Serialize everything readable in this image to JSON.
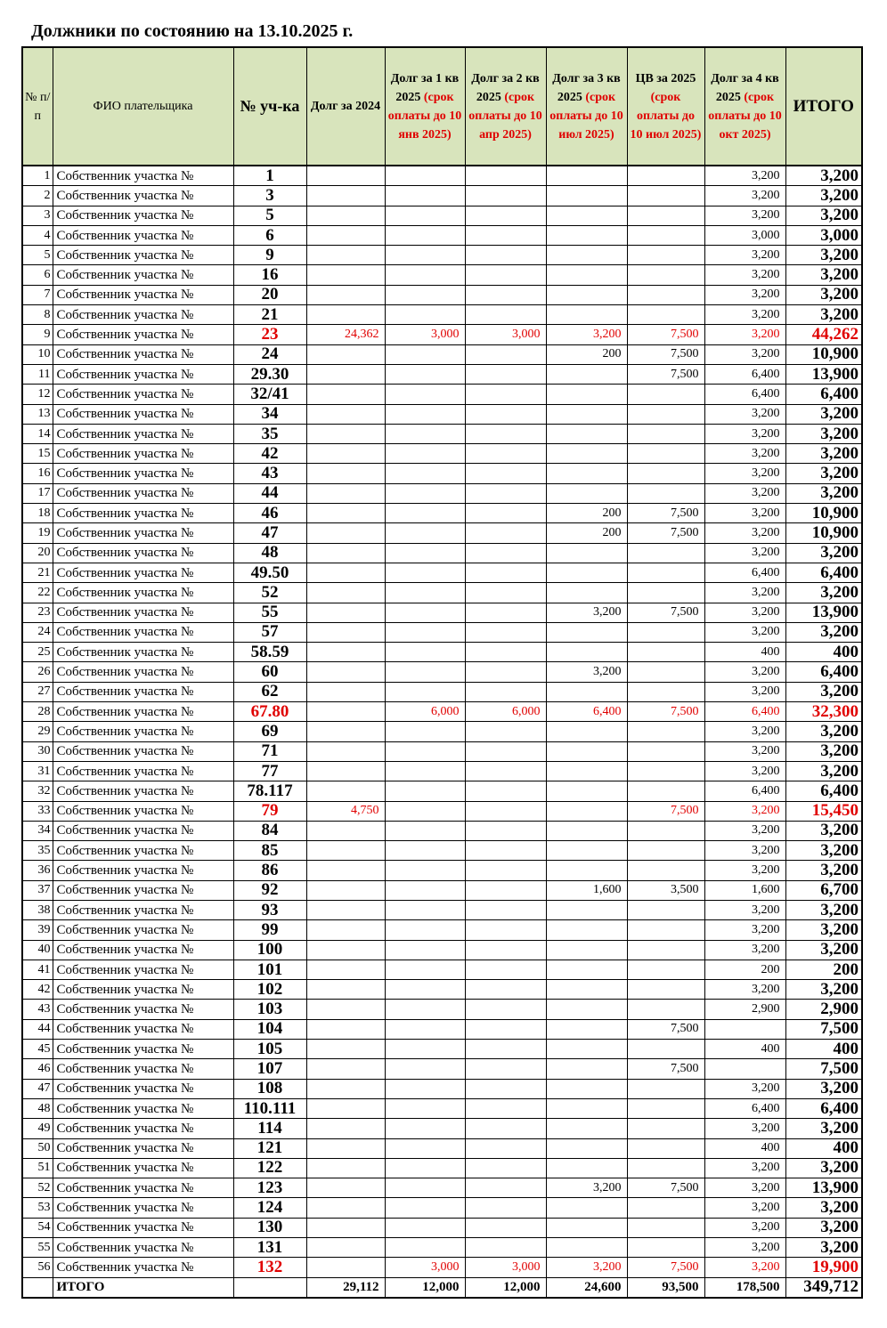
{
  "title": "Должники по состоянию на 13.10.2025 г.",
  "headers": {
    "num": "№ п/п",
    "name": "ФИО плательщика",
    "plot": "№ уч-ка",
    "d2024": "Долг за 2024",
    "q1": "Долг за 1 кв 2025",
    "q1_note": "(срок оплаты до 10 янв 2025)",
    "q2": "Долг за 2 кв 2025",
    "q2_note": "(срок оплаты до 10 апр 2025)",
    "q3": "Долг за 3 кв 2025",
    "q3_note": "(срок оплаты до 10 июл 2025)",
    "cv": "ЦВ за 2025",
    "cv_note": "(срок оплаты до 10 июл 2025)",
    "q4": "Долг за 4 кв 2025",
    "q4_note": "(срок оплаты до 10 окт 2025)",
    "total": "ИТОГО"
  },
  "highlight_color": "#e00000",
  "header_bg": "#d8e4bc",
  "rows": [
    [
      "1",
      "Собственник участка №",
      "1",
      "",
      "",
      "",
      "",
      "",
      "3,200",
      "3,200",
      false
    ],
    [
      "2",
      "Собственник участка №",
      "3",
      "",
      "",
      "",
      "",
      "",
      "3,200",
      "3,200",
      false
    ],
    [
      "3",
      "Собственник участка №",
      "5",
      "",
      "",
      "",
      "",
      "",
      "3,200",
      "3,200",
      false
    ],
    [
      "4",
      "Собственник участка №",
      "6",
      "",
      "",
      "",
      "",
      "",
      "3,000",
      "3,000",
      false
    ],
    [
      "5",
      "Собственник участка №",
      "9",
      "",
      "",
      "",
      "",
      "",
      "3,200",
      "3,200",
      false
    ],
    [
      "6",
      "Собственник участка №",
      "16",
      "",
      "",
      "",
      "",
      "",
      "3,200",
      "3,200",
      false
    ],
    [
      "7",
      "Собственник участка №",
      "20",
      "",
      "",
      "",
      "",
      "",
      "3,200",
      "3,200",
      false
    ],
    [
      "8",
      "Собственник участка №",
      "21",
      "",
      "",
      "",
      "",
      "",
      "3,200",
      "3,200",
      false
    ],
    [
      "9",
      "Собственник участка №",
      "23",
      "24,362",
      "3,000",
      "3,000",
      "3,200",
      "7,500",
      "3,200",
      "44,262",
      true
    ],
    [
      "10",
      "Собственник участка №",
      "24",
      "",
      "",
      "",
      "200",
      "7,500",
      "3,200",
      "10,900",
      false
    ],
    [
      "11",
      "Собственник участка №",
      "29.30",
      "",
      "",
      "",
      "",
      "7,500",
      "6,400",
      "13,900",
      false
    ],
    [
      "12",
      "Собственник участка №",
      "32/41",
      "",
      "",
      "",
      "",
      "",
      "6,400",
      "6,400",
      false
    ],
    [
      "13",
      "Собственник участка №",
      "34",
      "",
      "",
      "",
      "",
      "",
      "3,200",
      "3,200",
      false
    ],
    [
      "14",
      "Собственник участка №",
      "35",
      "",
      "",
      "",
      "",
      "",
      "3,200",
      "3,200",
      false
    ],
    [
      "15",
      "Собственник участка №",
      "42",
      "",
      "",
      "",
      "",
      "",
      "3,200",
      "3,200",
      false
    ],
    [
      "16",
      "Собственник участка №",
      "43",
      "",
      "",
      "",
      "",
      "",
      "3,200",
      "3,200",
      false
    ],
    [
      "17",
      "Собственник участка №",
      "44",
      "",
      "",
      "",
      "",
      "",
      "3,200",
      "3,200",
      false
    ],
    [
      "18",
      "Собственник участка №",
      "46",
      "",
      "",
      "",
      "200",
      "7,500",
      "3,200",
      "10,900",
      false
    ],
    [
      "19",
      "Собственник участка №",
      "47",
      "",
      "",
      "",
      "200",
      "7,500",
      "3,200",
      "10,900",
      false
    ],
    [
      "20",
      "Собственник участка №",
      "48",
      "",
      "",
      "",
      "",
      "",
      "3,200",
      "3,200",
      false
    ],
    [
      "21",
      "Собственник участка №",
      "49.50",
      "",
      "",
      "",
      "",
      "",
      "6,400",
      "6,400",
      false
    ],
    [
      "22",
      "Собственник участка №",
      "52",
      "",
      "",
      "",
      "",
      "",
      "3,200",
      "3,200",
      false
    ],
    [
      "23",
      "Собственник участка №",
      "55",
      "",
      "",
      "",
      "3,200",
      "7,500",
      "3,200",
      "13,900",
      false
    ],
    [
      "24",
      "Собственник участка №",
      "57",
      "",
      "",
      "",
      "",
      "",
      "3,200",
      "3,200",
      false
    ],
    [
      "25",
      "Собственник участка №",
      "58.59",
      "",
      "",
      "",
      "",
      "",
      "400",
      "400",
      false
    ],
    [
      "26",
      "Собственник участка №",
      "60",
      "",
      "",
      "",
      "3,200",
      "",
      "3,200",
      "6,400",
      false
    ],
    [
      "27",
      "Собственник участка №",
      "62",
      "",
      "",
      "",
      "",
      "",
      "3,200",
      "3,200",
      false
    ],
    [
      "28",
      "Собственник участка №",
      "67.80",
      "",
      "6,000",
      "6,000",
      "6,400",
      "7,500",
      "6,400",
      "32,300",
      true
    ],
    [
      "29",
      "Собственник участка №",
      "69",
      "",
      "",
      "",
      "",
      "",
      "3,200",
      "3,200",
      false
    ],
    [
      "30",
      "Собственник участка №",
      "71",
      "",
      "",
      "",
      "",
      "",
      "3,200",
      "3,200",
      false
    ],
    [
      "31",
      "Собственник участка №",
      "77",
      "",
      "",
      "",
      "",
      "",
      "3,200",
      "3,200",
      false
    ],
    [
      "32",
      "Собственник участка №",
      "78.117",
      "",
      "",
      "",
      "",
      "",
      "6,400",
      "6,400",
      false
    ],
    [
      "33",
      "Собственник участка №",
      "79",
      "4,750",
      "",
      "",
      "",
      "7,500",
      "3,200",
      "15,450",
      true
    ],
    [
      "34",
      "Собственник участка №",
      "84",
      "",
      "",
      "",
      "",
      "",
      "3,200",
      "3,200",
      false
    ],
    [
      "35",
      "Собственник участка №",
      "85",
      "",
      "",
      "",
      "",
      "",
      "3,200",
      "3,200",
      false
    ],
    [
      "36",
      "Собственник участка №",
      "86",
      "",
      "",
      "",
      "",
      "",
      "3,200",
      "3,200",
      false
    ],
    [
      "37",
      "Собственник участка №",
      "92",
      "",
      "",
      "",
      "1,600",
      "3,500",
      "1,600",
      "6,700",
      false
    ],
    [
      "38",
      "Собственник участка №",
      "93",
      "",
      "",
      "",
      "",
      "",
      "3,200",
      "3,200",
      false
    ],
    [
      "39",
      "Собственник участка №",
      "99",
      "",
      "",
      "",
      "",
      "",
      "3,200",
      "3,200",
      false
    ],
    [
      "40",
      "Собственник участка №",
      "100",
      "",
      "",
      "",
      "",
      "",
      "3,200",
      "3,200",
      false
    ],
    [
      "41",
      "Собственник участка №",
      "101",
      "",
      "",
      "",
      "",
      "",
      "200",
      "200",
      false
    ],
    [
      "42",
      "Собственник участка №",
      "102",
      "",
      "",
      "",
      "",
      "",
      "3,200",
      "3,200",
      false
    ],
    [
      "43",
      "Собственник участка №",
      "103",
      "",
      "",
      "",
      "",
      "",
      "2,900",
      "2,900",
      false
    ],
    [
      "44",
      "Собственник участка №",
      "104",
      "",
      "",
      "",
      "",
      "7,500",
      "",
      "7,500",
      false
    ],
    [
      "45",
      "Собственник участка №",
      "105",
      "",
      "",
      "",
      "",
      "",
      "400",
      "400",
      false
    ],
    [
      "46",
      "Собственник участка №",
      "107",
      "",
      "",
      "",
      "",
      "7,500",
      "",
      "7,500",
      false
    ],
    [
      "47",
      "Собственник участка №",
      "108",
      "",
      "",
      "",
      "",
      "",
      "3,200",
      "3,200",
      false
    ],
    [
      "48",
      "Собственник участка №",
      "110.111",
      "",
      "",
      "",
      "",
      "",
      "6,400",
      "6,400",
      false
    ],
    [
      "49",
      "Собственник участка №",
      "114",
      "",
      "",
      "",
      "",
      "",
      "3,200",
      "3,200",
      false
    ],
    [
      "50",
      "Собственник участка №",
      "121",
      "",
      "",
      "",
      "",
      "",
      "400",
      "400",
      false
    ],
    [
      "51",
      "Собственник участка №",
      "122",
      "",
      "",
      "",
      "",
      "",
      "3,200",
      "3,200",
      false
    ],
    [
      "52",
      "Собственник участка №",
      "123",
      "",
      "",
      "",
      "3,200",
      "7,500",
      "3,200",
      "13,900",
      false
    ],
    [
      "53",
      "Собственник участка №",
      "124",
      "",
      "",
      "",
      "",
      "",
      "3,200",
      "3,200",
      false
    ],
    [
      "54",
      "Собственник участка №",
      "130",
      "",
      "",
      "",
      "",
      "",
      "3,200",
      "3,200",
      false
    ],
    [
      "55",
      "Собственник участка №",
      "131",
      "",
      "",
      "",
      "",
      "",
      "3,200",
      "3,200",
      false
    ],
    [
      "56",
      "Собственник участка №",
      "132",
      "",
      "3,000",
      "3,000",
      "3,200",
      "7,500",
      "3,200",
      "19,900",
      true
    ]
  ],
  "totals": {
    "label": "ИТОГО",
    "d2024": "29,112",
    "q1": "12,000",
    "q2": "12,000",
    "q3": "24,600",
    "cv": "93,500",
    "q4": "178,500",
    "total": "349,712"
  }
}
